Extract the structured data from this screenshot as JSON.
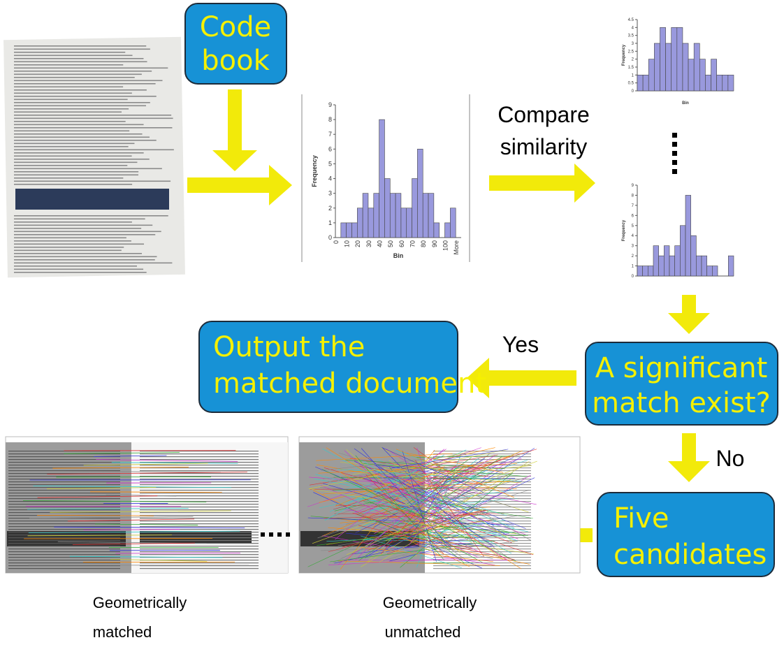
{
  "nodes": {
    "codebook": [
      "Code",
      "book"
    ],
    "compare": [
      "Compare",
      "similarity"
    ],
    "output": [
      "Output  the",
      "matched document"
    ],
    "decision": [
      "A significant",
      "match exist?"
    ],
    "candidates": [
      "Five",
      "candidates"
    ],
    "yes": "Yes",
    "no": "No",
    "matched_caption": [
      "Geometrically",
      "matched"
    ],
    "unmatched_caption": [
      "Geometrically",
      "unmatched"
    ]
  },
  "histograms": [
    {
      "type": "bar",
      "y_label": "Frequency",
      "x_label": "Bin",
      "categories": [
        "0",
        null,
        "10",
        null,
        "20",
        null,
        "30",
        null,
        "40",
        null,
        "50",
        null,
        "60",
        null,
        "70",
        null,
        "80",
        null,
        "90",
        null,
        "100",
        null,
        "More"
      ],
      "values": [
        0,
        1,
        1,
        1,
        2,
        3,
        2,
        3,
        8,
        4,
        3,
        3,
        2,
        2,
        4,
        6,
        3,
        3,
        1,
        0,
        1,
        2,
        0
      ],
      "ylim": [
        0,
        9
      ],
      "yticks": [
        0,
        1,
        2,
        3,
        4,
        5,
        6,
        7,
        8,
        9
      ],
      "color": "#9999dd"
    },
    {
      "type": "bar",
      "y_label": "Frequency",
      "x_label": "Bin",
      "values": [
        1,
        1,
        2,
        3,
        4,
        3,
        4,
        4,
        3,
        2,
        3,
        2,
        1,
        2,
        1,
        1,
        1
      ],
      "ylim": [
        0,
        4.5
      ],
      "yticks": [
        0,
        0.5,
        1,
        1.5,
        2,
        2.5,
        3,
        3.5,
        4,
        4.5
      ],
      "color": "#9999dd"
    },
    {
      "type": "bar",
      "y_label": "Frequency",
      "values": [
        1,
        1,
        1,
        3,
        2,
        3,
        2,
        3,
        5,
        8,
        4,
        2,
        2,
        1,
        1,
        0,
        0,
        2
      ],
      "ylim": [
        0,
        9
      ],
      "yticks": [
        0,
        1,
        2,
        3,
        4,
        5,
        6,
        7,
        8,
        9
      ],
      "color": "#9999dd"
    }
  ]
}
